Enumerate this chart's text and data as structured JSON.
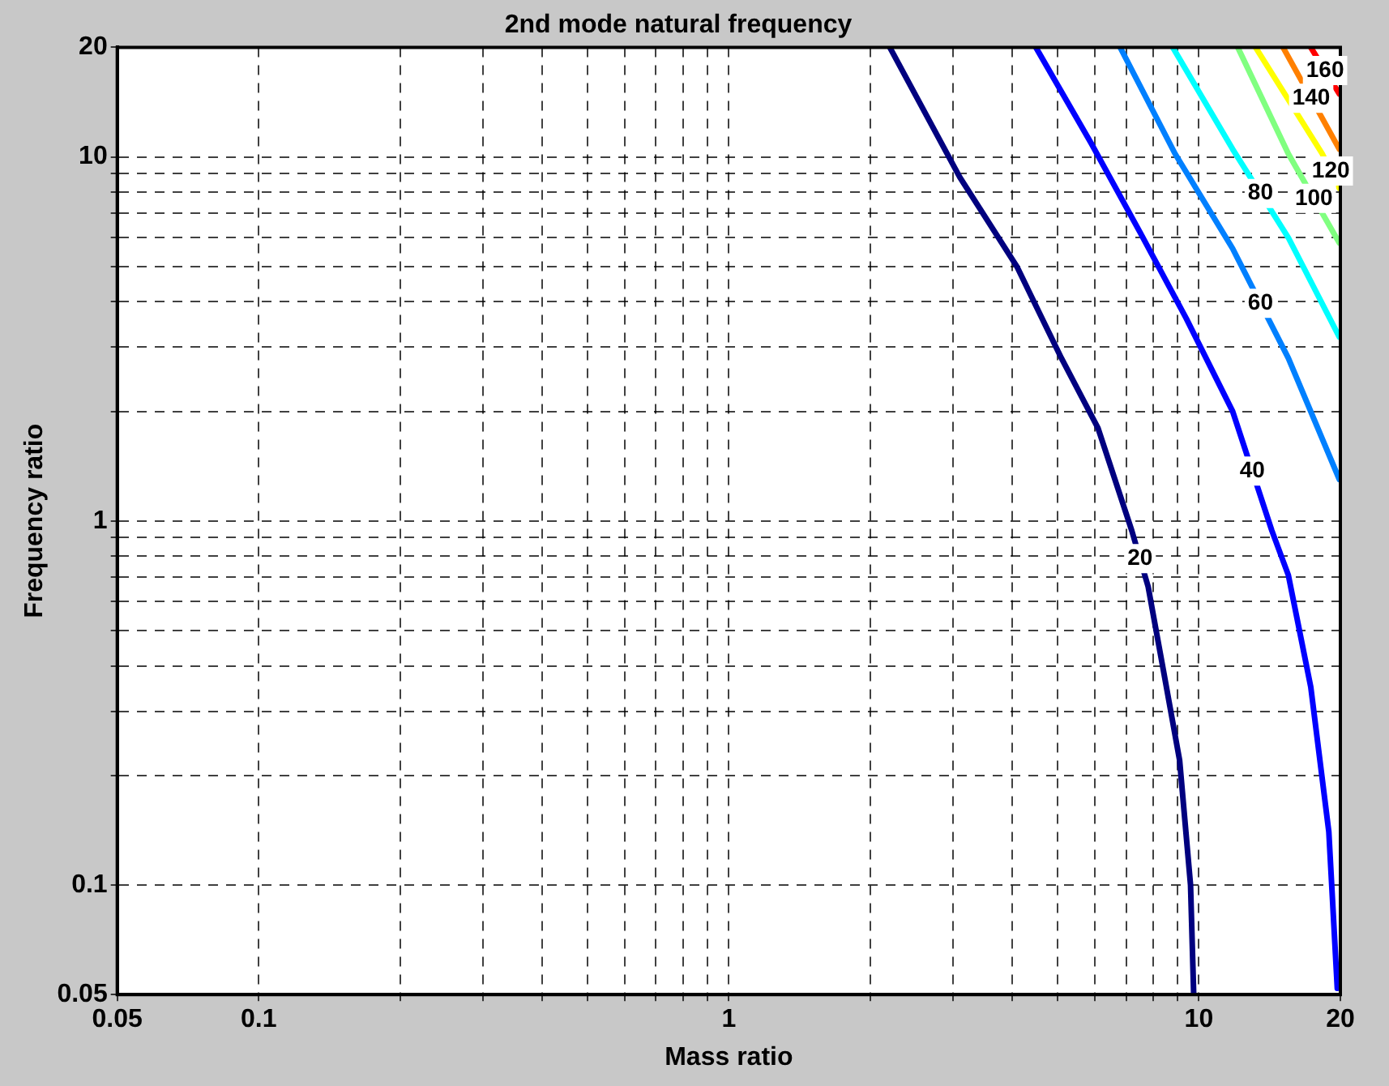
{
  "chart_data": {
    "type": "line",
    "title": "2nd mode natural frequency",
    "xlabel": "Mass ratio",
    "ylabel": "Frequency ratio",
    "log": "xy",
    "grid": true,
    "legend": false,
    "marker": "none",
    "line_style": "solid",
    "xlim": [
      0.05,
      20
    ],
    "ylim": [
      0.05,
      20
    ],
    "xticks": [
      0.05,
      0.1,
      {
        "value": 0.2,
        "label": null
      },
      {
        "value": 0.3,
        "label": null
      },
      {
        "value": 0.4,
        "label": null
      },
      {
        "value": 0.5,
        "label": null
      },
      {
        "value": 0.6,
        "label": null
      },
      {
        "value": 0.7,
        "label": null
      },
      {
        "value": 0.8,
        "label": null
      },
      {
        "value": 0.9,
        "label": null
      },
      1,
      {
        "value": 2,
        "label": null
      },
      {
        "value": 3,
        "label": null
      },
      {
        "value": 4,
        "label": null
      },
      {
        "value": 5,
        "label": null
      },
      {
        "value": 6,
        "label": null
      },
      {
        "value": 7,
        "label": null
      },
      {
        "value": 8,
        "label": null
      },
      {
        "value": 9,
        "label": null
      },
      10,
      20
    ],
    "yticks": [
      0.05,
      0.1,
      {
        "value": 0.2,
        "label": null
      },
      {
        "value": 0.3,
        "label": null
      },
      {
        "value": 0.4,
        "label": null
      },
      {
        "value": 0.5,
        "label": null
      },
      {
        "value": 0.6,
        "label": null
      },
      {
        "value": 0.7,
        "label": null
      },
      {
        "value": 0.8,
        "label": null
      },
      {
        "value": 0.9,
        "label": null
      },
      1,
      {
        "value": 2,
        "label": null
      },
      {
        "value": 3,
        "label": null
      },
      {
        "value": 4,
        "label": null
      },
      {
        "value": 5,
        "label": null
      },
      {
        "value": 6,
        "label": null
      },
      {
        "value": 7,
        "label": null
      },
      {
        "value": 8,
        "label": null
      },
      {
        "value": 9,
        "label": null
      },
      10,
      20
    ],
    "series": [
      {
        "name": "20",
        "color": "#00007f",
        "x": [
          2.2,
          3.1,
          4.1,
          5.1,
          6.1,
          7.2,
          7.8,
          8.4,
          9.1,
          9.6,
          9.75
        ],
        "values": [
          20,
          8.8,
          5.0,
          2.8,
          1.8,
          0.94,
          0.66,
          0.39,
          0.22,
          0.1,
          0.05
        ]
      },
      {
        "name": "40",
        "color": "#0000ff",
        "x": [
          4.5,
          5.9,
          7.5,
          9.4,
          11.8,
          14.3,
          15.5,
          17.3,
          18.9,
          19.7
        ],
        "values": [
          20,
          10.9,
          6.2,
          3.6,
          2.0,
          0.94,
          0.71,
          0.35,
          0.14,
          0.052
        ]
      },
      {
        "name": "60",
        "color": "#0080ff",
        "x": [
          6.8,
          8.9,
          11.8,
          15.5,
          19.9
        ],
        "values": [
          20,
          10.2,
          5.6,
          2.8,
          1.3
        ]
      },
      {
        "name": "80",
        "color": "#00ffff",
        "x": [
          8.8,
          11.8,
          15.5,
          19.9
        ],
        "values": [
          20,
          10.5,
          6.0,
          3.2
        ]
      },
      {
        "name": "100",
        "color": "#80ff80",
        "x": [
          12.1,
          15.5,
          19.9
        ],
        "values": [
          20,
          10.2,
          5.8
        ]
      },
      {
        "name": "120",
        "color": "#ffff00",
        "x": [
          13.2,
          18.3,
          19.9
        ],
        "values": [
          20,
          10.2,
          8.2
        ]
      },
      {
        "name": "140",
        "color": "#ff8000",
        "x": [
          15.1,
          19.9
        ],
        "values": [
          20,
          10.5
        ]
      },
      {
        "name": "160",
        "color": "#ff0000",
        "x": [
          17.3,
          19.9
        ],
        "values": [
          20,
          14.9
        ]
      }
    ]
  }
}
